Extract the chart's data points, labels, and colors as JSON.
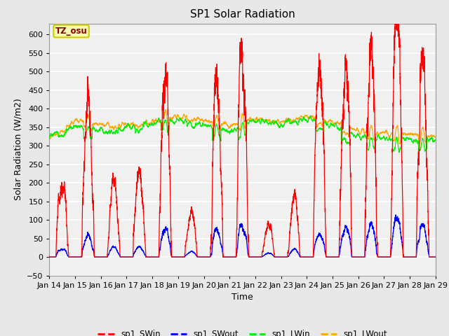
{
  "title": "SP1 Solar Radiation",
  "xlabel": "Time",
  "ylabel": "Solar Radiation (W/m2)",
  "ylim": [
    -50,
    630
  ],
  "xlim": [
    0,
    360
  ],
  "bg_color": "#e8e8e8",
  "plot_bg": "#f0f0f0",
  "grid_color": "white",
  "colors": {
    "SWin": "red",
    "SWout": "blue",
    "LWin": "#00ee00",
    "LWout": "orange"
  },
  "tz_label": "TZ_osu",
  "x_tick_labels": [
    "Jan 14",
    "Jan 15",
    "Jan 16",
    "Jan 17",
    "Jan 18",
    "Jan 19",
    "Jan 20",
    "Jan 21",
    "Jan 22",
    "Jan 23",
    "Jan 24",
    "Jan 25",
    "Jan 26",
    "Jan 27",
    "Jan 28",
    "Jan 29"
  ],
  "legend_labels": [
    "sp1_SWin",
    "sp1_SWout",
    "sp1_LWin",
    "sp1_LWout"
  ],
  "legend_colors": [
    "red",
    "blue",
    "#00ee00",
    "orange"
  ],
  "yticks": [
    -50,
    0,
    50,
    100,
    150,
    200,
    250,
    300,
    350,
    400,
    450,
    500,
    550,
    600
  ]
}
